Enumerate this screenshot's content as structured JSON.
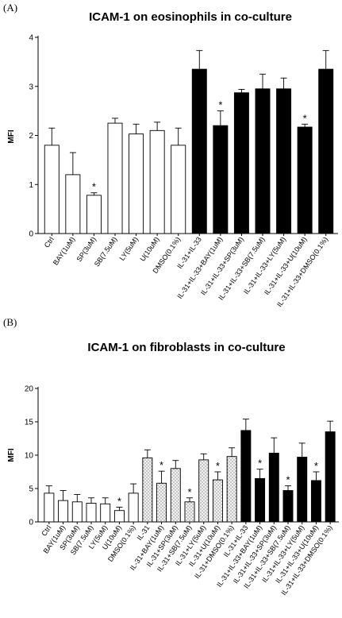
{
  "chart_data": [
    {
      "type": "bar",
      "panel_label": "(A)",
      "title": "ICAM-1 on eosinophils in co-culture",
      "ylabel": "MFI",
      "xlabel": "",
      "ylim": [
        0,
        4
      ],
      "yticks": [
        "0",
        "1",
        "2",
        "3",
        "4"
      ],
      "categories": [
        "Ctrl",
        "BAY(1uM)",
        "SP(3uM)",
        "SB(7.5uM)",
        "LY(5uM)",
        "U(10uM)",
        "DMSO(0.1%)",
        "IL-31+IL-33",
        "IL-31+IL-33+BAY(1uM)",
        "IL-31+IL-33+SP(3uM)",
        "IL-31+IL-33+SB(7.5uM)",
        "IL-31+IL-33+LY(5uM)",
        "IL-31+IL-33+U(10uM)",
        "IL-31+IL-33+DMSO(0.1%)"
      ],
      "values": [
        1.8,
        1.2,
        0.78,
        2.25,
        2.03,
        2.1,
        1.8,
        3.35,
        2.2,
        2.87,
        2.95,
        2.95,
        2.17,
        3.35
      ],
      "errors": [
        0.35,
        0.45,
        0.05,
        0.1,
        0.2,
        0.17,
        0.35,
        0.38,
        0.3,
        0.07,
        0.3,
        0.22,
        0.06,
        0.38
      ],
      "fills": [
        "white",
        "white",
        "white",
        "white",
        "white",
        "white",
        "white",
        "black",
        "black",
        "black",
        "black",
        "black",
        "black",
        "black"
      ],
      "significance": [
        "",
        "",
        "*",
        "",
        "",
        "",
        "",
        "",
        "*",
        "",
        "",
        "",
        "*",
        ""
      ],
      "grid": false
    },
    {
      "type": "bar",
      "panel_label": "(B)",
      "title": "ICAM-1 on fibroblasts in co-culture",
      "ylabel": "MFI",
      "xlabel": "",
      "ylim": [
        0,
        20
      ],
      "yticks": [
        "0",
        "5",
        "10",
        "15",
        "20"
      ],
      "categories": [
        "Ctrl",
        "BAY(1uM)",
        "SP(3uM)",
        "SB(7.5uM)",
        "LY(5uM)",
        "U(10uM)",
        "DMSO(0.1%)",
        "IL-31",
        "IL-31+BAY(1uM)",
        "IL-31+SP(3uM)",
        "IL-31+SB(7.5uM)",
        "IL-31+LY(5uM)",
        "IL-31+U(10uM)",
        "IL-31+DMSO(0.1%)",
        "IL-31+IL-33",
        "IL-31+IL-33+BAY(1uM)",
        "IL-31+IL-33+SP(3uM)",
        "IL-31+IL-33+SB(7.5uM)",
        "IL-31+IL-33+LY(5uM)",
        "IL-31+IL-33+U(10uM)",
        "IL-31+IL-33+DMSO(0.1%)"
      ],
      "values": [
        4.3,
        3.2,
        3.0,
        2.8,
        2.7,
        1.7,
        4.3,
        9.6,
        5.8,
        8.0,
        3.0,
        9.3,
        6.3,
        9.8,
        13.7,
        6.5,
        10.3,
        4.7,
        9.7,
        6.2,
        13.5
      ],
      "errors": [
        1.1,
        1.5,
        1.1,
        0.8,
        0.9,
        0.5,
        1.4,
        1.2,
        1.8,
        1.2,
        0.6,
        0.9,
        1.2,
        1.3,
        1.7,
        1.4,
        2.3,
        0.7,
        2.1,
        1.3,
        1.6
      ],
      "fills": [
        "white",
        "white",
        "white",
        "white",
        "white",
        "white",
        "white",
        "dotted",
        "dotted",
        "dotted",
        "dotted",
        "dotted",
        "dotted",
        "dotted",
        "black",
        "black",
        "black",
        "black",
        "black",
        "black",
        "black"
      ],
      "significance": [
        "",
        "",
        "",
        "",
        "",
        "*",
        "",
        "",
        "*",
        "",
        "*",
        "",
        "*",
        "",
        "",
        "*",
        "",
        "*",
        "",
        "*",
        ""
      ],
      "grid": false
    }
  ],
  "colors": {
    "bar_dark": "#000000",
    "bar_light": "#ffffff",
    "dot_fill": "#f0f0f0",
    "axis": "#000000"
  }
}
